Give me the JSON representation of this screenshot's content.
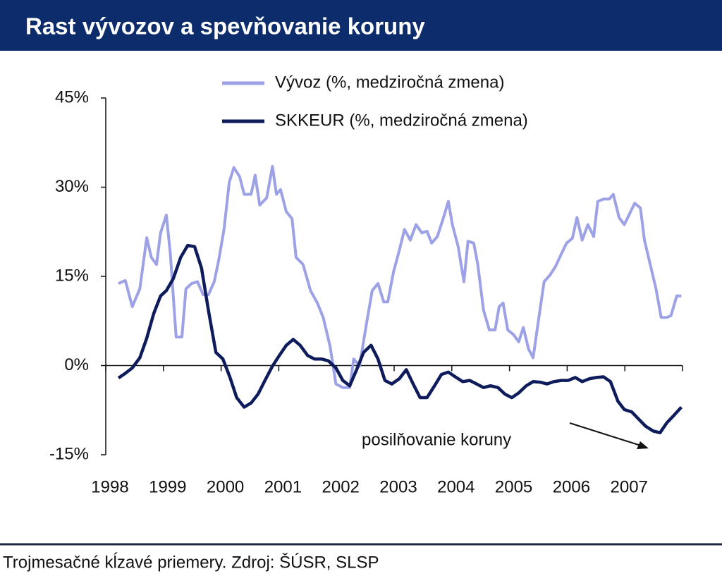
{
  "chart_data": {
    "type": "line",
    "title": "Rast vývozov a spevňovanie koruny",
    "source": "Trojmesačné kĺzavé priemery. Zdroj: ŠÚSR, SLSP",
    "annotation": "posilňovanie koruny",
    "xlim": [
      1998,
      2008
    ],
    "xticks": [
      1998,
      1999,
      2000,
      2001,
      2002,
      2003,
      2004,
      2005,
      2006,
      2007
    ],
    "ylim": [
      -15,
      45
    ],
    "yticks": [
      {
        "value": -15,
        "label": "-15%"
      },
      {
        "value": 0,
        "label": "0%"
      },
      {
        "value": 15,
        "label": "15%"
      },
      {
        "value": 30,
        "label": "30%"
      },
      {
        "value": 45,
        "label": "45%"
      }
    ],
    "legend": "top",
    "series": [
      {
        "name": "Vývoz (%, medziročná zmena)",
        "color": "#9da2e6",
        "x": [
          1998.22,
          1998.34,
          1998.46,
          1998.59,
          1998.71,
          1998.79,
          1998.88,
          1998.95,
          1999.05,
          1999.12,
          1999.22,
          1999.32,
          1999.39,
          1999.49,
          1999.59,
          1999.69,
          1999.78,
          1999.88,
          1999.96,
          2000.05,
          2000.14,
          2000.22,
          2000.32,
          2000.4,
          2000.52,
          2000.59,
          2000.67,
          2000.79,
          2000.89,
          2000.96,
          2001.03,
          2001.13,
          2001.23,
          2001.3,
          2001.42,
          2001.55,
          2001.67,
          2001.77,
          2001.89,
          2001.99,
          2002.11,
          2002.23,
          2002.3,
          2002.4,
          2002.52,
          2002.62,
          2002.72,
          2002.82,
          2002.89,
          2002.99,
          2003.09,
          2003.18,
          2003.28,
          2003.38,
          2003.48,
          2003.57,
          2003.65,
          2003.75,
          2003.84,
          2003.94,
          2004.01,
          2004.11,
          2004.21,
          2004.28,
          2004.38,
          2004.45,
          2004.55,
          2004.65,
          2004.75,
          2004.82,
          2004.89,
          2004.97,
          2005.07,
          2005.16,
          2005.24,
          2005.33,
          2005.41,
          2005.51,
          2005.6,
          2005.7,
          2005.8,
          2005.9,
          2005.99,
          2006.09,
          2006.17,
          2006.26,
          2006.36,
          2006.46,
          2006.53,
          2006.63,
          2006.73,
          2006.8,
          2006.9,
          2006.99,
          2007.1,
          2007.17,
          2007.27,
          2007.34,
          2007.44,
          2007.54,
          2007.63,
          2007.73,
          2007.8,
          2007.9,
          2007.98
        ],
        "values": [
          13.8,
          14.3,
          9.9,
          12.9,
          21.5,
          18.2,
          17,
          22.3,
          25.3,
          18.8,
          4.8,
          4.8,
          12.9,
          13.8,
          14.1,
          11.9,
          11.9,
          14.1,
          17.8,
          22.9,
          30.8,
          33.3,
          31.8,
          28.8,
          28.8,
          32,
          27,
          28.2,
          33.5,
          28.8,
          29.6,
          25.9,
          24.7,
          18.2,
          17,
          12.6,
          10.5,
          8.1,
          3.2,
          -3.1,
          -3.7,
          -3.7,
          1.1,
          -0.1,
          7,
          12.6,
          13.8,
          10.7,
          10.7,
          15.8,
          19.4,
          22.9,
          21.1,
          23.7,
          22.3,
          22.6,
          20.6,
          21.7,
          24.4,
          27.6,
          23.7,
          20,
          14.1,
          20.9,
          20.6,
          17,
          9.3,
          6,
          6,
          9.9,
          10.5,
          6,
          5.2,
          4,
          6.4,
          2.8,
          1.3,
          8.1,
          14.1,
          15.2,
          16.7,
          18.8,
          20.6,
          21.4,
          24.9,
          21.1,
          23.7,
          21.7,
          27.6,
          28,
          28,
          28.8,
          24.9,
          23.7,
          25.9,
          27.3,
          26.5,
          21.1,
          17,
          12.9,
          8.1,
          8.1,
          8.4,
          11.7,
          11.7
        ]
      },
      {
        "name": "SKKEUR (%, medziročná zmena)",
        "color": "#0f1c5c",
        "x": [
          1998.22,
          1998.34,
          1998.46,
          1998.59,
          1998.71,
          1998.83,
          1998.95,
          1999.05,
          1999.17,
          1999.3,
          1999.42,
          1999.54,
          1999.66,
          1999.78,
          1999.91,
          2000.03,
          2000.15,
          2000.27,
          2000.4,
          2000.52,
          2000.64,
          2000.76,
          2000.89,
          2001.01,
          2001.13,
          2001.25,
          2001.37,
          2001.5,
          2001.62,
          2001.74,
          2001.86,
          2001.99,
          2002.11,
          2002.23,
          2002.35,
          2002.47,
          2002.6,
          2002.72,
          2002.84,
          2002.96,
          2003.09,
          2003.21,
          2003.33,
          2003.45,
          2003.57,
          2003.7,
          2003.82,
          2003.94,
          2004.06,
          2004.19,
          2004.31,
          2004.43,
          2004.55,
          2004.67,
          2004.8,
          2004.92,
          2005.04,
          2005.16,
          2005.29,
          2005.41,
          2005.53,
          2005.65,
          2005.77,
          2005.9,
          2006.02,
          2006.14,
          2006.26,
          2006.39,
          2006.51,
          2006.63,
          2006.75,
          2006.88,
          2006.99,
          2007.12,
          2007.24,
          2007.36,
          2007.49,
          2007.61,
          2007.73,
          2007.85,
          2007.98
        ],
        "values": [
          -2.1,
          -1.3,
          -0.4,
          1.3,
          4.6,
          8.7,
          11.7,
          12.6,
          14.6,
          18.2,
          20.2,
          20,
          16.4,
          9.3,
          2.2,
          1.1,
          -1.9,
          -5.4,
          -7,
          -6.3,
          -4.8,
          -2.5,
          -0.1,
          1.7,
          3.4,
          4.4,
          3.4,
          1.7,
          1.1,
          1.1,
          0.8,
          -0.4,
          -2.5,
          -3.4,
          -0.7,
          2.2,
          3.4,
          1.1,
          -2.5,
          -3.1,
          -2.2,
          -0.7,
          -3.1,
          -5.4,
          -5.4,
          -3.4,
          -1.5,
          -1.1,
          -1.9,
          -2.7,
          -2.5,
          -3.1,
          -3.7,
          -3.4,
          -3.7,
          -4.8,
          -5.4,
          -4.6,
          -3.4,
          -2.7,
          -2.8,
          -3.1,
          -2.7,
          -2.5,
          -2.5,
          -2,
          -2.7,
          -2.2,
          -2,
          -1.9,
          -2.7,
          -6,
          -7.4,
          -7.8,
          -9,
          -10.2,
          -11,
          -11.3,
          -9.6,
          -8.4,
          -7
        ]
      }
    ]
  }
}
